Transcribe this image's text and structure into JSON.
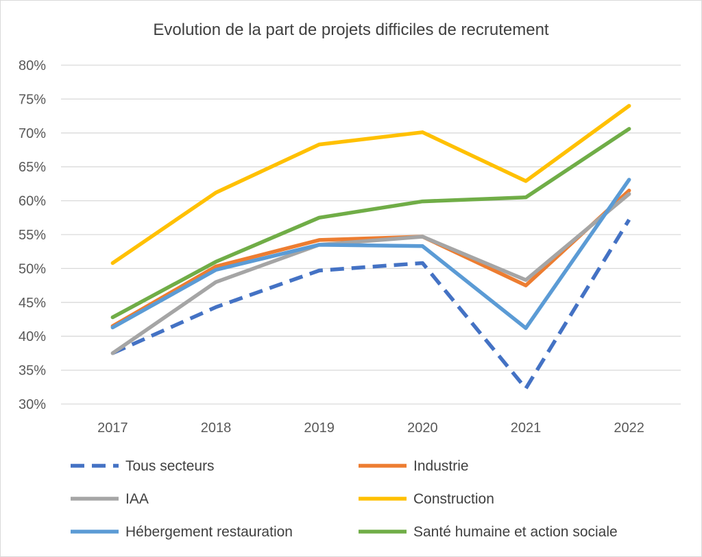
{
  "chart_data": {
    "type": "line",
    "title": "Evolution de la part de projets difficiles de recrutement",
    "xlabel": "",
    "ylabel": "",
    "categories": [
      "2017",
      "2018",
      "2019",
      "2020",
      "2021",
      "2022"
    ],
    "ylim": [
      0.3,
      0.8
    ],
    "ytick_step": 0.05,
    "ytick_labels": [
      "30%",
      "35%",
      "40%",
      "45%",
      "50%",
      "55%",
      "60%",
      "65%",
      "70%",
      "75%",
      "80%"
    ],
    "grid": true,
    "legend_position": "bottom",
    "series": [
      {
        "name": "Tous secteurs",
        "color": "#4472C4",
        "dashed": true,
        "values": [
          0.375,
          0.443,
          0.497,
          0.508,
          0.323,
          0.572
        ]
      },
      {
        "name": "Industrie",
        "color": "#ED7D31",
        "dashed": false,
        "values": [
          0.415,
          0.503,
          0.542,
          0.547,
          0.475,
          0.615
        ]
      },
      {
        "name": "IAA",
        "color": "#A5A5A5",
        "dashed": false,
        "values": [
          0.375,
          0.48,
          0.535,
          0.547,
          0.483,
          0.61
        ]
      },
      {
        "name": "Construction",
        "color": "#FFC000",
        "dashed": false,
        "values": [
          0.508,
          0.612,
          0.683,
          0.701,
          0.629,
          0.74
        ]
      },
      {
        "name": "Hébergement restauration",
        "color": "#5B9BD5",
        "dashed": false,
        "values": [
          0.413,
          0.498,
          0.535,
          0.533,
          0.412,
          0.631
        ]
      },
      {
        "name": "Santé humaine et action sociale",
        "color": "#70AD47",
        "dashed": false,
        "values": [
          0.428,
          0.51,
          0.575,
          0.599,
          0.605,
          0.706
        ]
      }
    ]
  }
}
